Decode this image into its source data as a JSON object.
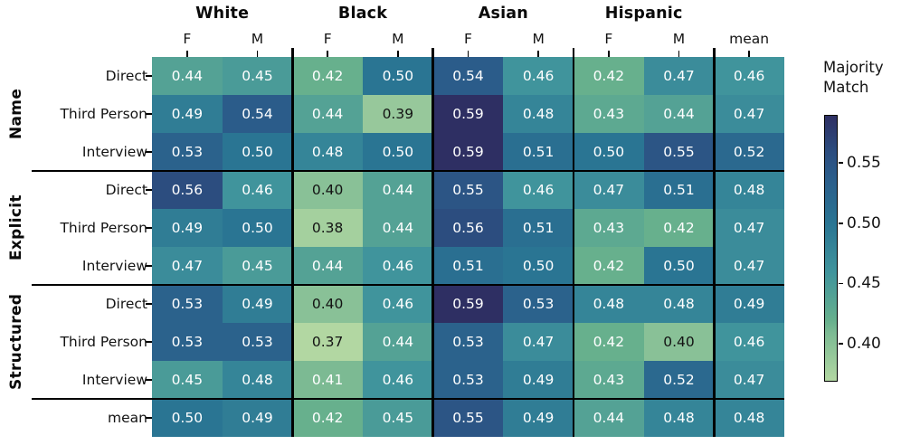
{
  "figure": {
    "col_group_labels": [
      "White",
      "Black",
      "Asian",
      "Hispanic"
    ],
    "col_sub_labels": [
      "F",
      "M",
      "F",
      "M",
      "F",
      "M",
      "F",
      "M",
      "mean"
    ],
    "row_group_labels": [
      "Name",
      "Explicit",
      "Structured"
    ],
    "row_labels": [
      "Direct",
      "Third Person",
      "Interview",
      "Direct",
      "Third Person",
      "Interview",
      "Direct",
      "Third Person",
      "Interview",
      "mean"
    ]
  },
  "colorbar": {
    "title_line1": "Majority",
    "title_line2": "Match",
    "tick_labels": [
      "0.55",
      "0.50",
      "0.45",
      "0.40"
    ],
    "tick_values": [
      0.55,
      0.5,
      0.45,
      0.4
    ]
  },
  "chart_data": {
    "type": "heatmap",
    "colorbar_label": "Majority Match",
    "col_groups": [
      "White",
      "Black",
      "Asian",
      "Hispanic"
    ],
    "col_subcolumns": [
      "F",
      "M"
    ],
    "columns": [
      "White F",
      "White M",
      "Black F",
      "Black M",
      "Asian F",
      "Asian M",
      "Hispanic F",
      "Hispanic M",
      "mean"
    ],
    "row_groups": [
      "Name",
      "Explicit",
      "Structured"
    ],
    "rows": [
      "Name Direct",
      "Name Third Person",
      "Name Interview",
      "Explicit Direct",
      "Explicit Third Person",
      "Explicit Interview",
      "Structured Direct",
      "Structured Third Person",
      "Structured Interview",
      "mean"
    ],
    "values": [
      [
        0.44,
        0.45,
        0.42,
        0.5,
        0.54,
        0.46,
        0.42,
        0.47,
        0.46
      ],
      [
        0.49,
        0.54,
        0.44,
        0.39,
        0.59,
        0.48,
        0.43,
        0.44,
        0.47
      ],
      [
        0.53,
        0.5,
        0.48,
        0.5,
        0.59,
        0.51,
        0.5,
        0.55,
        0.52
      ],
      [
        0.56,
        0.46,
        0.4,
        0.44,
        0.55,
        0.46,
        0.47,
        0.51,
        0.48
      ],
      [
        0.49,
        0.5,
        0.38,
        0.44,
        0.56,
        0.51,
        0.43,
        0.42,
        0.47
      ],
      [
        0.47,
        0.45,
        0.44,
        0.46,
        0.51,
        0.5,
        0.42,
        0.5,
        0.47
      ],
      [
        0.53,
        0.49,
        0.4,
        0.46,
        0.59,
        0.53,
        0.48,
        0.48,
        0.49
      ],
      [
        0.53,
        0.53,
        0.37,
        0.44,
        0.53,
        0.47,
        0.42,
        0.4,
        0.46
      ],
      [
        0.45,
        0.48,
        0.41,
        0.46,
        0.53,
        0.49,
        0.43,
        0.52,
        0.47
      ],
      [
        0.5,
        0.49,
        0.42,
        0.45,
        0.55,
        0.49,
        0.44,
        0.48,
        0.48
      ]
    ],
    "value_format": "0.00",
    "vmin": 0.37,
    "vmax": 0.59,
    "colorbar_ticks": [
      0.4,
      0.45,
      0.5,
      0.55
    ],
    "colormap_name": "crest",
    "colormap_stops": [
      {
        "value": 0.37,
        "color": "#b2d7a2"
      },
      {
        "value": 0.41,
        "color": "#7cba93"
      },
      {
        "value": 0.42,
        "color": "#67b08d"
      },
      {
        "value": 0.46,
        "color": "#40949c"
      },
      {
        "value": 0.5,
        "color": "#2a7593"
      },
      {
        "value": 0.54,
        "color": "#2b5c8a"
      },
      {
        "value": 0.56,
        "color": "#2c4d7f"
      },
      {
        "value": 0.59,
        "color": "#2e2f63"
      }
    ],
    "annotation_dark_text_threshold": 0.405,
    "annotation_text_colors": {
      "light": "#ffffff",
      "dark": "#131313"
    },
    "separator_color": "#000000",
    "legend_position": "right",
    "grid": false
  }
}
